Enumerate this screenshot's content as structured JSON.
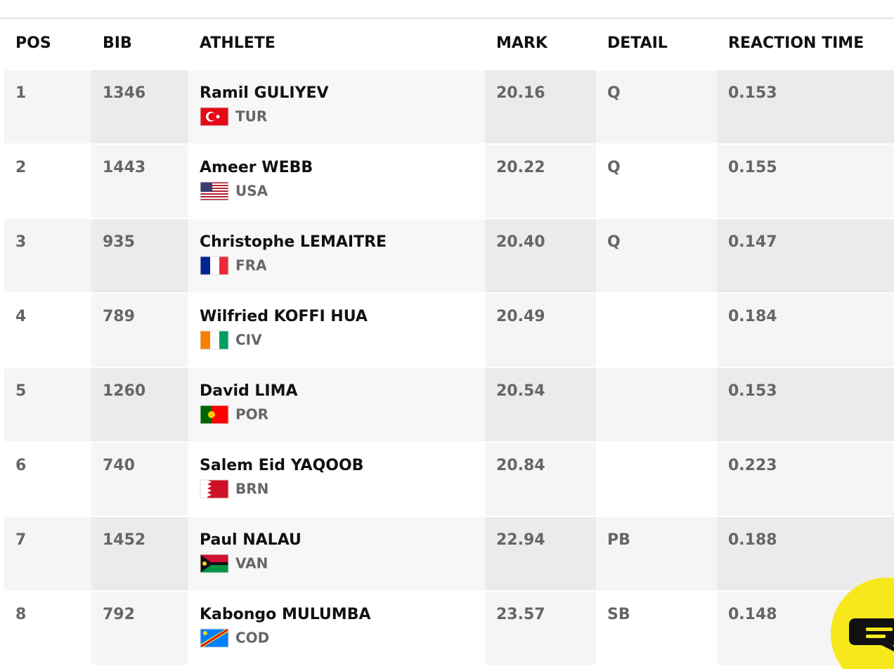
{
  "table": {
    "header": [
      "POS",
      "BIB",
      "ATHLETE",
      "MARK",
      "DETAIL",
      "REACTION TIME"
    ],
    "rows": [
      {
        "pos": 1,
        "bib": 1346,
        "athlete": "Ramil GULIYEV",
        "country": "TUR",
        "mark": "20.16",
        "detail": "Q",
        "reaction": "0.153"
      },
      {
        "pos": 2,
        "bib": 1443,
        "athlete": "Ameer WEBB",
        "country": "USA",
        "mark": "20.22",
        "detail": "Q",
        "reaction": "0.155"
      },
      {
        "pos": 3,
        "bib": 935,
        "athlete": "Christophe LEMAITRE",
        "country": "FRA",
        "mark": "20.40",
        "detail": "Q",
        "reaction": "0.147"
      },
      {
        "pos": 4,
        "bib": 789,
        "athlete": "Wilfried KOFFI HUA",
        "country": "CIV",
        "mark": "20.49",
        "reaction": "0.184"
      },
      {
        "pos": 5,
        "bib": 1260,
        "athlete": "David LIMA",
        "country": "POR",
        "mark": "20.54",
        "reaction": "0.153"
      },
      {
        "pos": 6,
        "bib": 740,
        "athlete": "Salem Eid YAQOOB",
        "country": "BRN",
        "mark": "20.84",
        "reaction": "0.223"
      },
      {
        "pos": 7,
        "bib": 1452,
        "athlete": "Paul NALAU",
        "country": "VAN",
        "mark": "22.94",
        "detail": "PB",
        "reaction": "0.188"
      },
      {
        "pos": 8,
        "bib": 792,
        "athlete": "Kabongo MULUMBA",
        "country": "COD",
        "mark": "23.57",
        "detail": "SB",
        "reaction": "0.148"
      }
    ]
  }
}
